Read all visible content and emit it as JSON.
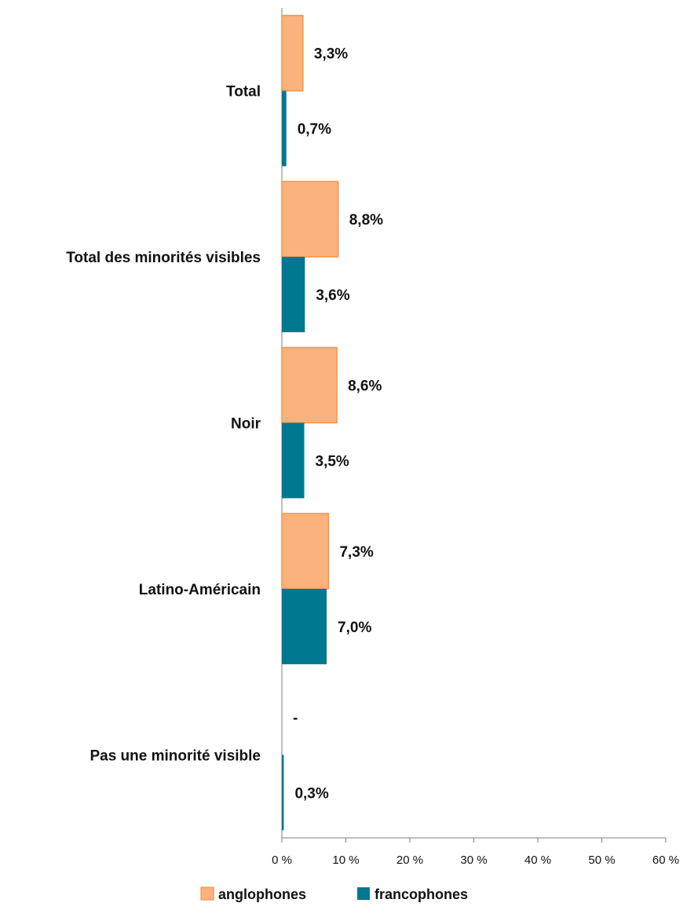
{
  "chart_data": {
    "type": "bar",
    "orientation": "horizontal",
    "categories": [
      "Total",
      "Total des minorités visibles",
      "Noir",
      "Latino-Américain",
      "Pas une minorité visible"
    ],
    "series": [
      {
        "name": "anglophones",
        "values": [
          3.3,
          8.8,
          8.6,
          7.3,
          null
        ],
        "labels": [
          "3,3%",
          "8,8%",
          "8,6%",
          "7,3%",
          "-"
        ],
        "color": "#FBB27C",
        "border_color": "#F79646"
      },
      {
        "name": "francophones",
        "values": [
          0.7,
          3.6,
          3.5,
          7.0,
          0.3
        ],
        "labels": [
          "0,7%",
          "3,6%",
          "3,5%",
          "7,0%",
          "0,3%"
        ],
        "color": "#00788F"
      }
    ],
    "x_ticks": [
      "0 %",
      "10 %",
      "20 %",
      "30 %",
      "40 %",
      "50 %",
      "60 %"
    ],
    "xlim": [
      0,
      60
    ],
    "grid": false,
    "legend_position": "bottom"
  }
}
